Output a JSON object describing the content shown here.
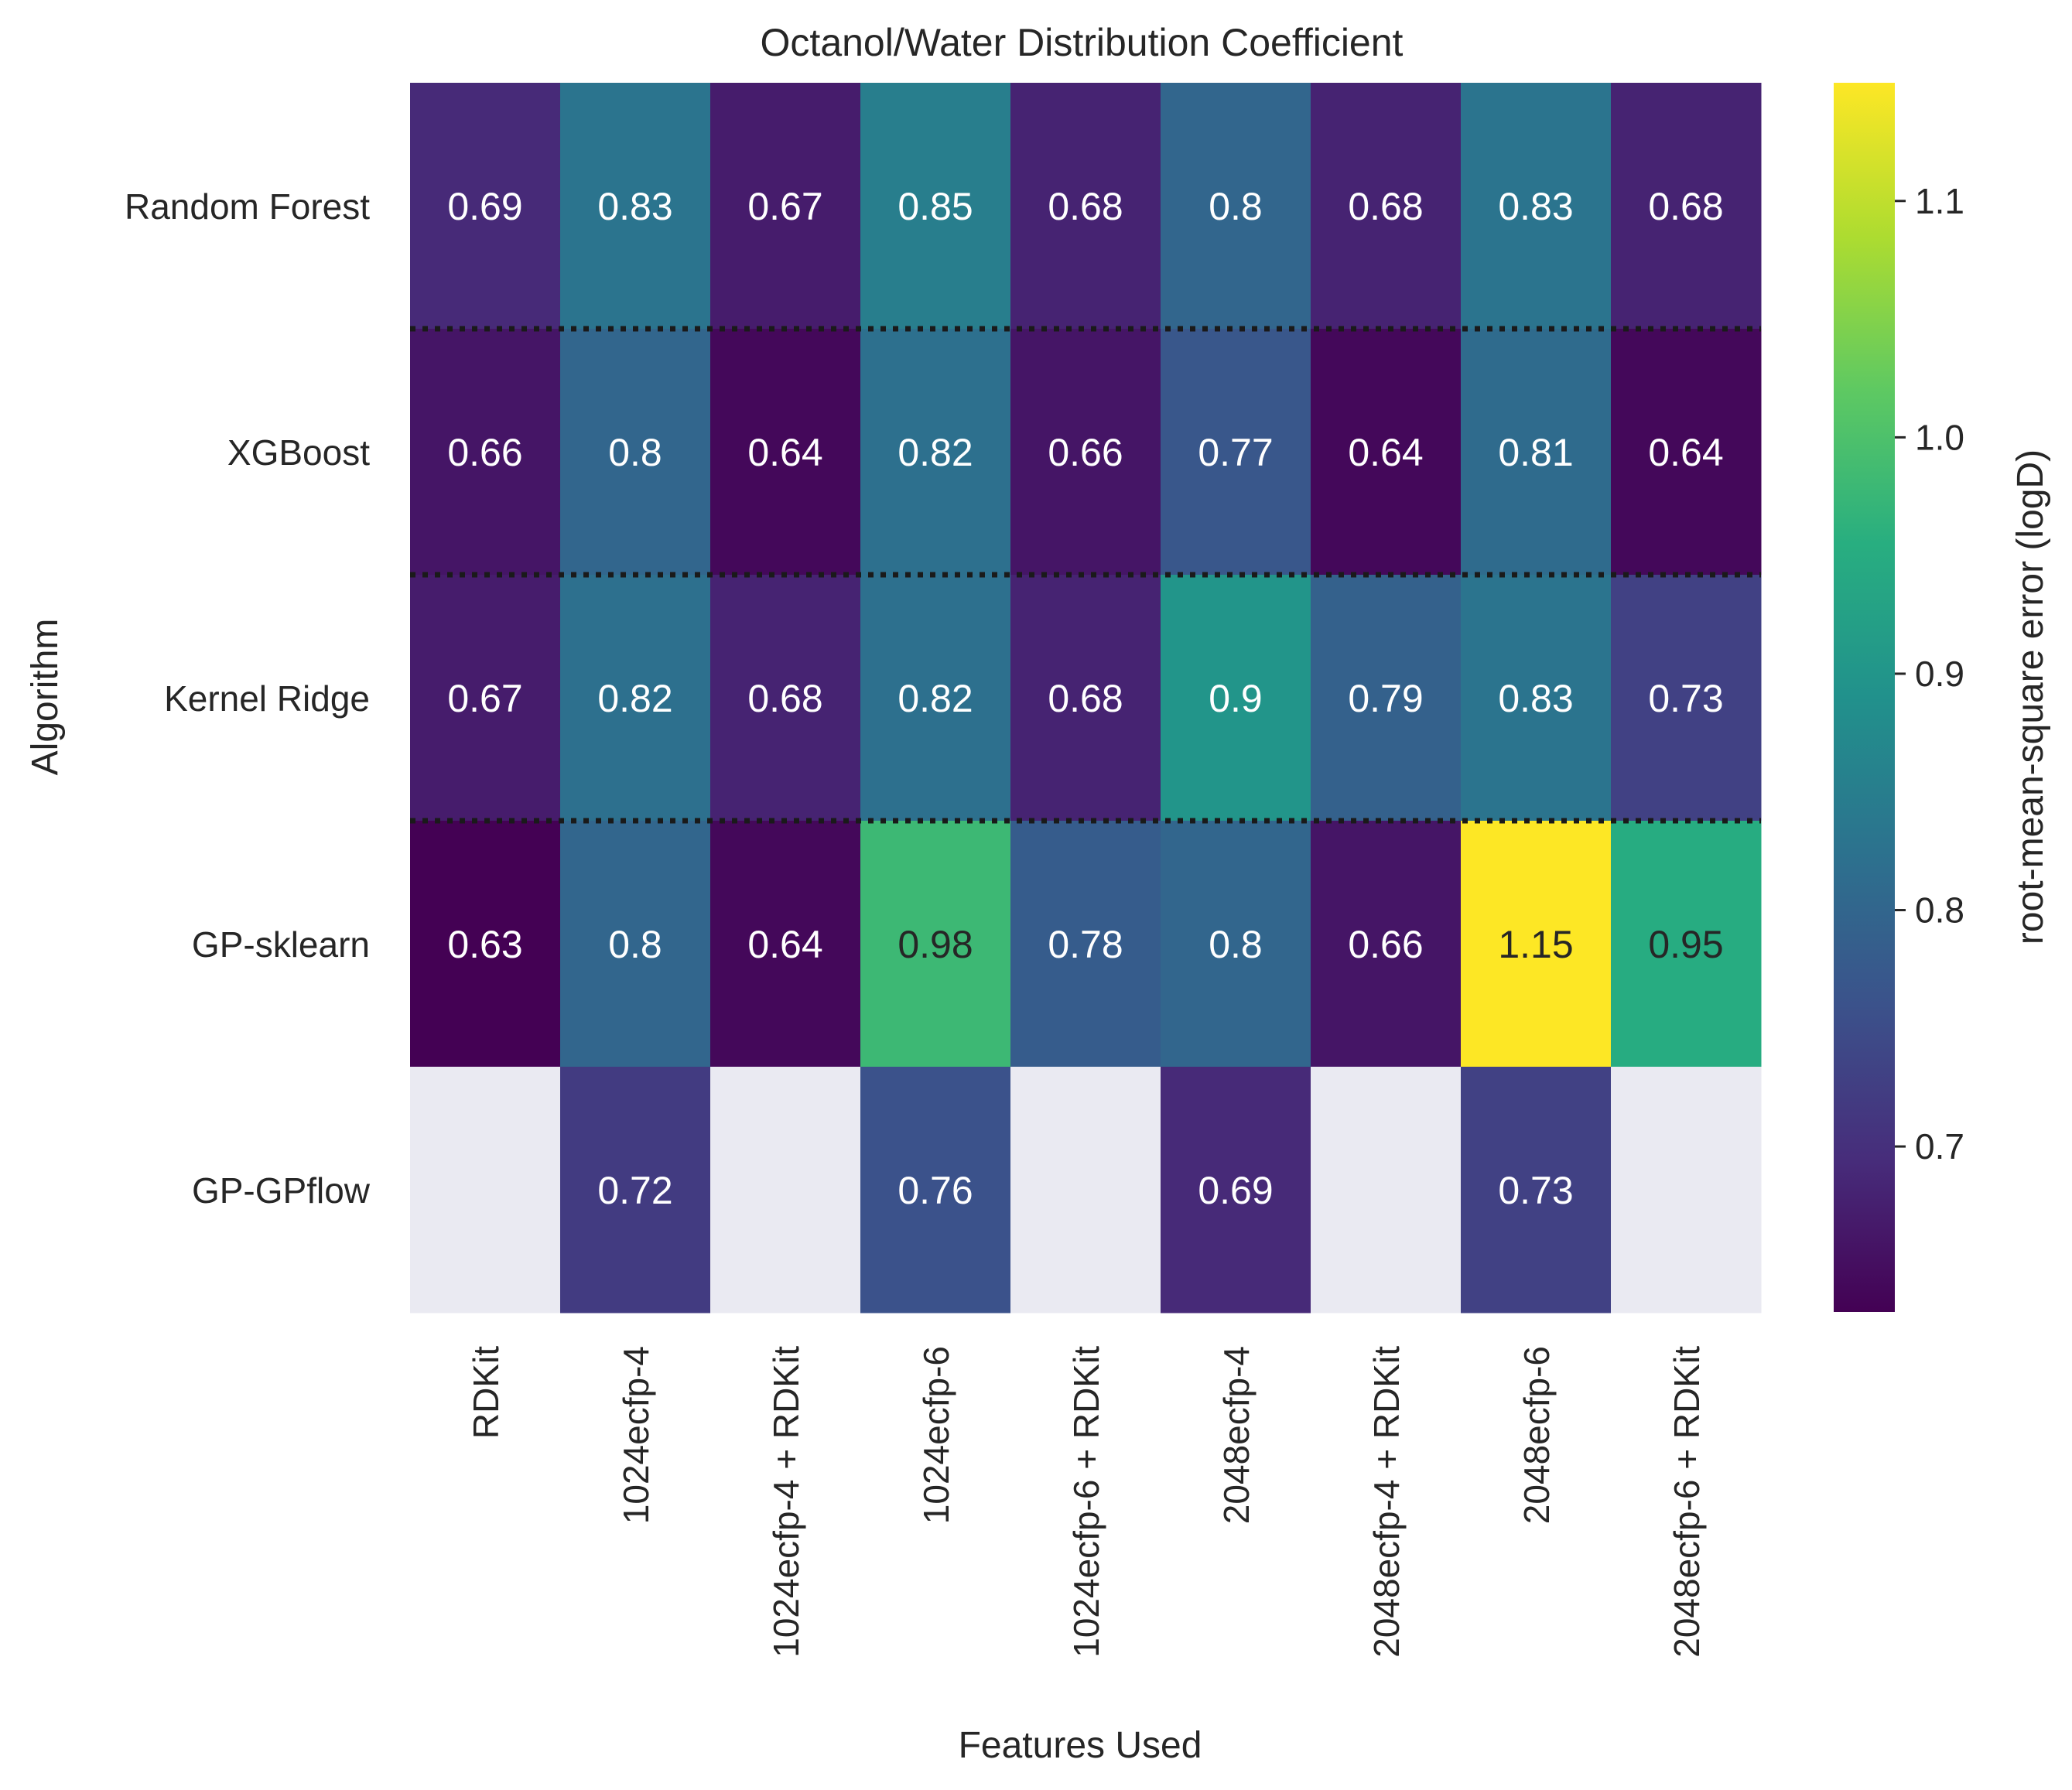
{
  "chart_data": {
    "type": "heatmap",
    "title": "Octanol/Water Distribution Coefficient",
    "xlabel": "Features Used",
    "ylabel": "Algorithm",
    "colorbar_label": "root-mean-square error (logD)",
    "x_categories": [
      "RDKit",
      "1024ecfp-4",
      "1024ecfp-4 + RDKit",
      "1024ecfp-6",
      "1024ecfp-6 + RDKit",
      "2048ecfp-4",
      "2048ecfp-4 + RDKit",
      "2048ecfp-6",
      "2048ecfp-6 + RDKit"
    ],
    "y_categories": [
      "Random Forest",
      "XGBoost",
      "Kernel Ridge",
      "GP-sklearn",
      "GP-GPflow"
    ],
    "values": [
      [
        0.69,
        0.83,
        0.67,
        0.85,
        0.68,
        0.8,
        0.68,
        0.83,
        0.68
      ],
      [
        0.66,
        0.8,
        0.64,
        0.82,
        0.66,
        0.77,
        0.64,
        0.81,
        0.64
      ],
      [
        0.67,
        0.82,
        0.68,
        0.82,
        0.68,
        0.9,
        0.79,
        0.83,
        0.73
      ],
      [
        0.63,
        0.8,
        0.64,
        0.98,
        0.78,
        0.8,
        0.66,
        1.15,
        0.95
      ],
      [
        null,
        0.72,
        null,
        0.76,
        null,
        0.69,
        null,
        0.73,
        null
      ]
    ],
    "value_labels": [
      [
        "0.69",
        "0.83",
        "0.67",
        "0.85",
        "0.68",
        "0.8",
        "0.68",
        "0.83",
        "0.68"
      ],
      [
        "0.66",
        "0.8",
        "0.64",
        "0.82",
        "0.66",
        "0.77",
        "0.64",
        "0.81",
        "0.64"
      ],
      [
        "0.67",
        "0.82",
        "0.68",
        "0.82",
        "0.68",
        "0.9",
        "0.79",
        "0.83",
        "0.73"
      ],
      [
        "0.63",
        "0.8",
        "0.64",
        "0.98",
        "0.78",
        "0.8",
        "0.66",
        "1.15",
        "0.95"
      ],
      [
        null,
        "0.72",
        null,
        "0.76",
        null,
        "0.69",
        null,
        "0.73",
        null
      ]
    ],
    "color_range": [
      0.63,
      1.15
    ],
    "colormap": "viridis",
    "colorbar_ticks": [
      0.7,
      0.8,
      0.9,
      1.0,
      1.1
    ],
    "colorbar_tick_labels": [
      "0.7",
      "0.8",
      "0.9",
      "1.0",
      "1.1"
    ],
    "missing_color": "#eaeaf2",
    "row_separator": "dotted black lines between the first four rows"
  }
}
